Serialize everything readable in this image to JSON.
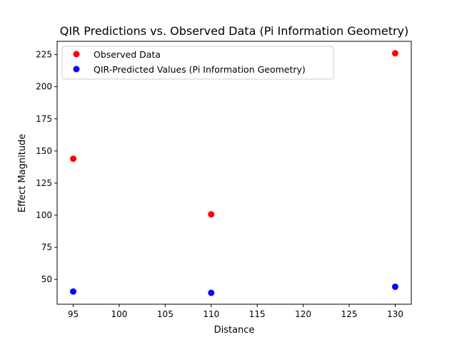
{
  "chart_data": {
    "type": "scatter",
    "title": "QIR Predictions vs. Observed Data (Pi Information Geometry)",
    "xlabel": "Distance",
    "ylabel": "Effect Magnitude",
    "xlim": [
      93.25,
      131.75
    ],
    "ylim": [
      30.7,
      235.3
    ],
    "xticks": [
      95,
      100,
      105,
      110,
      115,
      120,
      125,
      130
    ],
    "yticks": [
      50,
      75,
      100,
      125,
      150,
      175,
      200,
      225
    ],
    "grid": false,
    "legend_position": "upper left",
    "series": [
      {
        "name": "Observed Data",
        "color": "#ff0000",
        "x": [
          95,
          110,
          130
        ],
        "y": [
          143.9,
          100.6,
          226.0
        ]
      },
      {
        "name": "QIR-Predicted Values (Pi Information Geometry)",
        "color": "#0000ff",
        "x": [
          95,
          110,
          130
        ],
        "y": [
          40.6,
          39.6,
          44.3
        ]
      }
    ]
  }
}
